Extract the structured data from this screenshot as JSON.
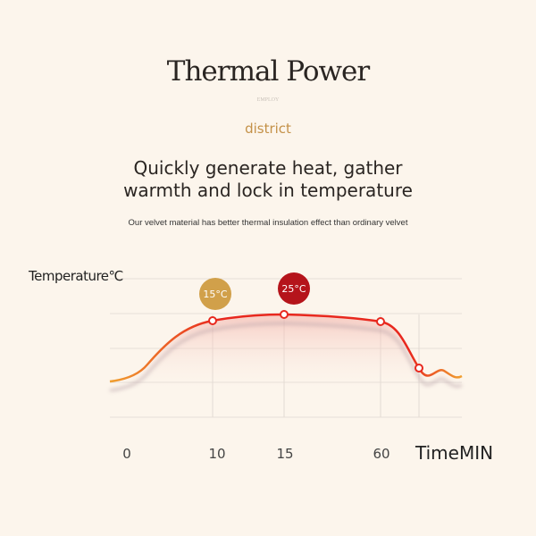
{
  "title": "Thermal Power",
  "brand": "EMPLOY",
  "district": "district",
  "headline": [
    "Quickly generate heat, gather",
    "warmth and lock in temperature"
  ],
  "subtitle": "Our velvet material has better thermal insulation effect than ordinary velvet",
  "chart_data": {
    "type": "line",
    "ylabel": "Temperature℃",
    "xlabel": "TimeMIN",
    "x_tick_labels": [
      "0",
      "10",
      "15",
      "60"
    ],
    "grid": true,
    "markers": [
      {
        "x": "10",
        "label": "15°C",
        "color": "#d1a04a"
      },
      {
        "x": "15",
        "label": "25°C",
        "color": "#b5141b"
      },
      {
        "x": "60",
        "label": ""
      }
    ],
    "line_colors": {
      "start": "#f0a030",
      "main": "#e8281e"
    }
  }
}
